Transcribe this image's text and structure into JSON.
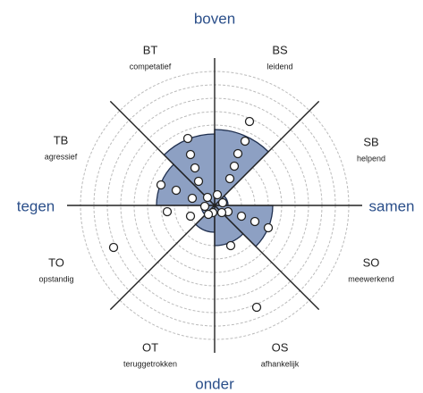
{
  "axes": {
    "top": "boven",
    "left": "tegen",
    "right": "samen",
    "bottom": "onder"
  },
  "sectors": [
    {
      "code": "BT",
      "label": "competatief"
    },
    {
      "code": "BS",
      "label": "leidend"
    },
    {
      "code": "SB",
      "label": "helpend"
    },
    {
      "code": "SO",
      "label": "meewerkend"
    },
    {
      "code": "OS",
      "label": "afhankelijk"
    },
    {
      "code": "OT",
      "label": "teruggetrokken"
    },
    {
      "code": "TO",
      "label": "opstandig"
    },
    {
      "code": "TB",
      "label": "agressief"
    }
  ]
}
